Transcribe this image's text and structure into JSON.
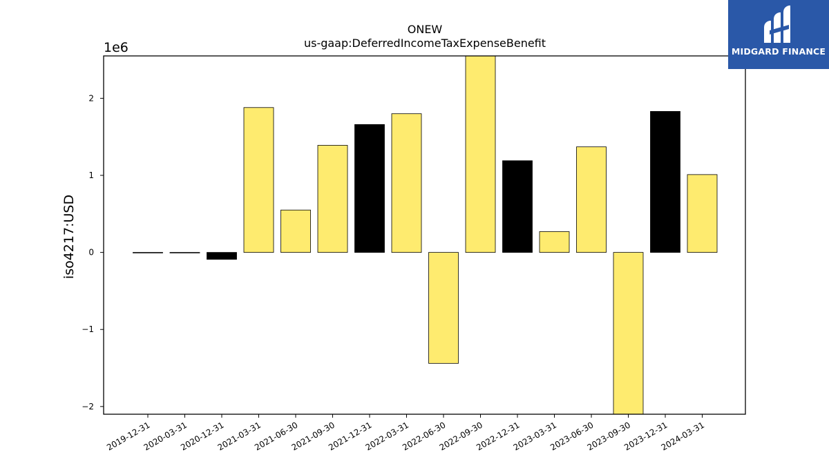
{
  "chart_data": {
    "type": "bar",
    "title": "ONEW",
    "subtitle": "us-gaap:DeferredIncomeTaxExpenseBenefit",
    "ylabel": "iso4217:USD",
    "xlabel": "",
    "scale_label": "1e6",
    "ylim": [
      -2.1,
      2.55
    ],
    "yticks": [
      -2,
      -1,
      0,
      1,
      2
    ],
    "ytick_labels": [
      "−2",
      "−1",
      "0",
      "1",
      "2"
    ],
    "grid": false,
    "categories": [
      "2019-12-31",
      "2020-03-31",
      "2020-12-31",
      "2021-03-31",
      "2021-06-30",
      "2021-09-30",
      "2021-12-31",
      "2022-03-31",
      "2022-06-30",
      "2022-09-30",
      "2022-12-31",
      "2023-03-31",
      "2023-06-30",
      "2023-09-30",
      "2023-12-31",
      "2024-03-31"
    ],
    "values": [
      0.0,
      0.0,
      -0.09,
      1.88,
      0.55,
      1.39,
      1.66,
      1.8,
      -1.44,
      2.55,
      1.19,
      0.27,
      1.37,
      -2.1,
      1.83,
      1.01
    ],
    "bar_colors": [
      "#000000",
      "#000000",
      "#000000",
      "#feeb6f",
      "#feeb6f",
      "#feeb6f",
      "#000000",
      "#feeb6f",
      "#feeb6f",
      "#feeb6f",
      "#000000",
      "#feeb6f",
      "#feeb6f",
      "#feeb6f",
      "#000000",
      "#feeb6f"
    ]
  },
  "logo": {
    "text": "MIDGARD FINANCE",
    "background": "#2a58a8",
    "icon": "midgard-logo-icon"
  }
}
